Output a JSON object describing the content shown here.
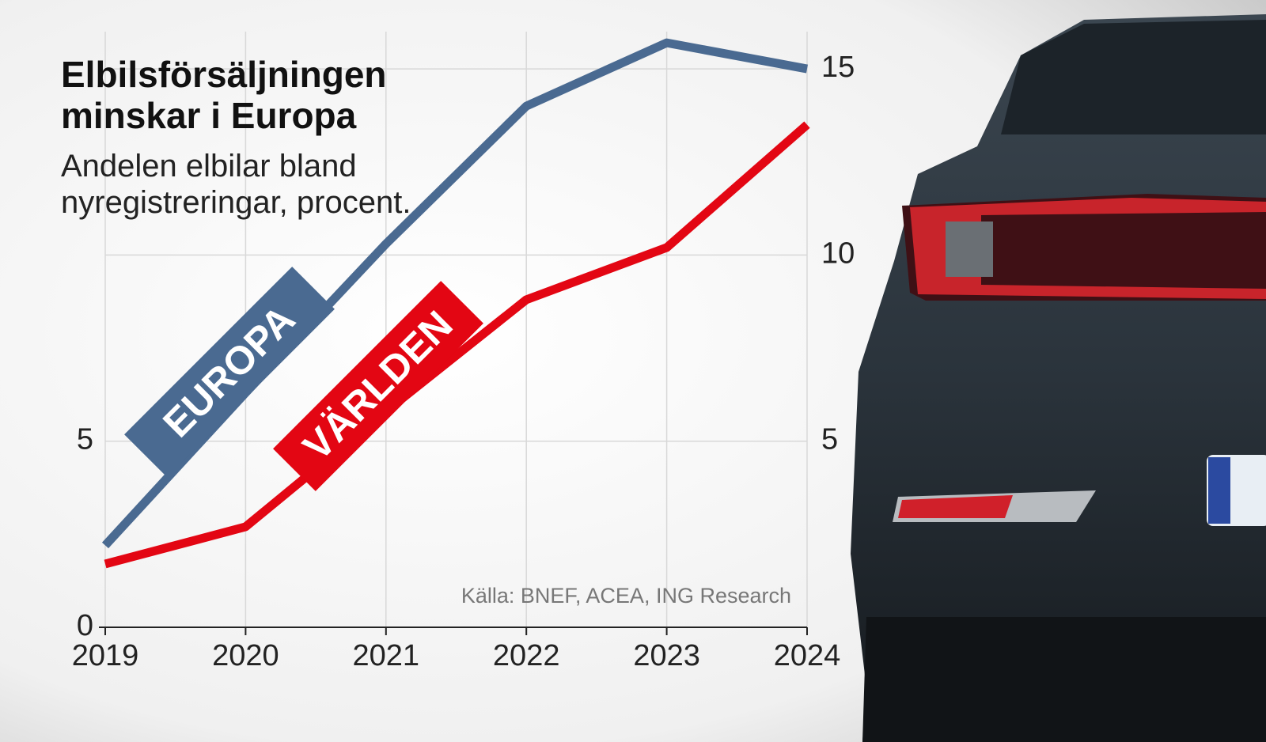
{
  "chart_data": {
    "type": "line",
    "title": "Elbilsförsäljningen minskar i Europa",
    "subtitle": "Andelen elbilar bland nyregistreringar, procent.",
    "source": "Källa: BNEF, ACEA, ING Research",
    "x": [
      2019,
      2020,
      2021,
      2022,
      2023,
      2024
    ],
    "xlim": [
      2019,
      2024
    ],
    "xticks": [
      2019,
      2020,
      2021,
      2022,
      2023,
      2024
    ],
    "ylim": [
      0,
      16
    ],
    "yticks": [
      0,
      5,
      10,
      15
    ],
    "grid": true,
    "series": [
      {
        "name": "EUROPA",
        "color": "#4a6a91",
        "values": [
          2.2,
          6.3,
          10.3,
          14.0,
          15.7,
          15.0
        ]
      },
      {
        "name": "VÄRLDEN",
        "color": "#e30613",
        "values": [
          1.7,
          2.7,
          5.8,
          8.8,
          10.2,
          13.5
        ]
      }
    ]
  }
}
